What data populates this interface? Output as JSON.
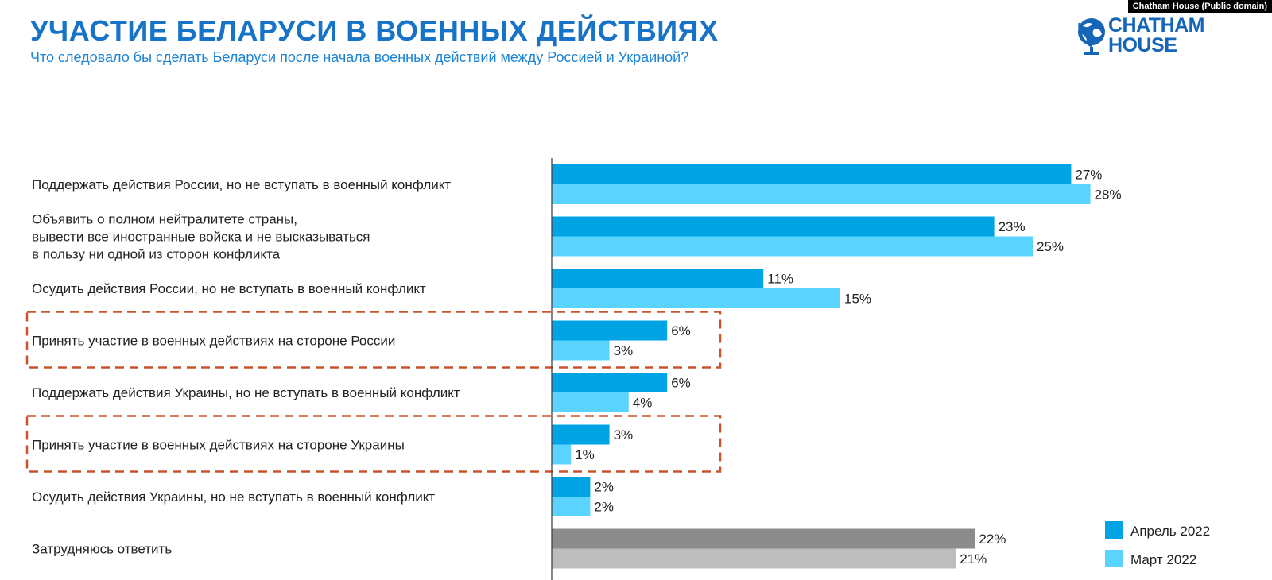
{
  "header": {
    "title": "УЧАСТИЕ БЕЛАРУСИ В ВОЕННЫХ ДЕЙСТВИЯХ",
    "subtitle": "Что следовало бы сделать Беларуси после начала военных действий между Россией и Украиной?",
    "credit": "Chatham House (Public domain)",
    "logo_line1": "CHATHAM",
    "logo_line2": "HOUSE"
  },
  "colors": {
    "april": "#00a4e4",
    "march": "#5ad4ff",
    "april_neutral": "#8c8c8c",
    "march_neutral": "#bdbdbd",
    "highlight_box": "#c9532a",
    "axis": "#444444",
    "brand": "#1565b8"
  },
  "chart_data": {
    "type": "bar",
    "orientation": "horizontal",
    "title": "УЧАСТИЕ БЕЛАРУСИ В ВОЕННЫХ ДЕЙСТВИЯХ",
    "subtitle": "Что следовало бы сделать Беларуси после начала военных действий между Россией и Украиной?",
    "xlim": [
      0,
      30
    ],
    "legend_position": "bottom-right",
    "grid": false,
    "categories": [
      [
        "Поддержать действия России, но не вступать в военный конфликт"
      ],
      [
        "Объявить о полном нейтралитете страны,",
        "вывести все иностранные войска и не высказываться",
        "в пользу ни одной из сторон конфликта"
      ],
      [
        "Осудить действия России, но не вступать в военный конфликт"
      ],
      [
        "Принять участие в военных действиях на стороне России"
      ],
      [
        "Поддержать действия Украины, но не вступать в военный конфликт"
      ],
      [
        "Принять участие в военных действиях на стороне Украины"
      ],
      [
        "Осудить действия Украины, но не вступать в военный конфликт"
      ],
      [
        "Затрудняюсь ответить"
      ]
    ],
    "highlighted_categories": [
      3,
      5
    ],
    "series": [
      {
        "name": "Апрель 2022",
        "values": [
          27,
          23,
          11,
          6,
          6,
          3,
          2,
          22
        ],
        "labels": [
          "27%",
          "23%",
          "11%",
          "6%",
          "6%",
          "3%",
          "2%",
          "22%"
        ]
      },
      {
        "name": "Март 2022",
        "values": [
          28,
          25,
          15,
          3,
          4,
          1,
          2,
          21
        ],
        "labels": [
          "28%",
          "25%",
          "15%",
          "3%",
          "4%",
          "1%",
          "2%",
          "21%"
        ]
      }
    ]
  }
}
